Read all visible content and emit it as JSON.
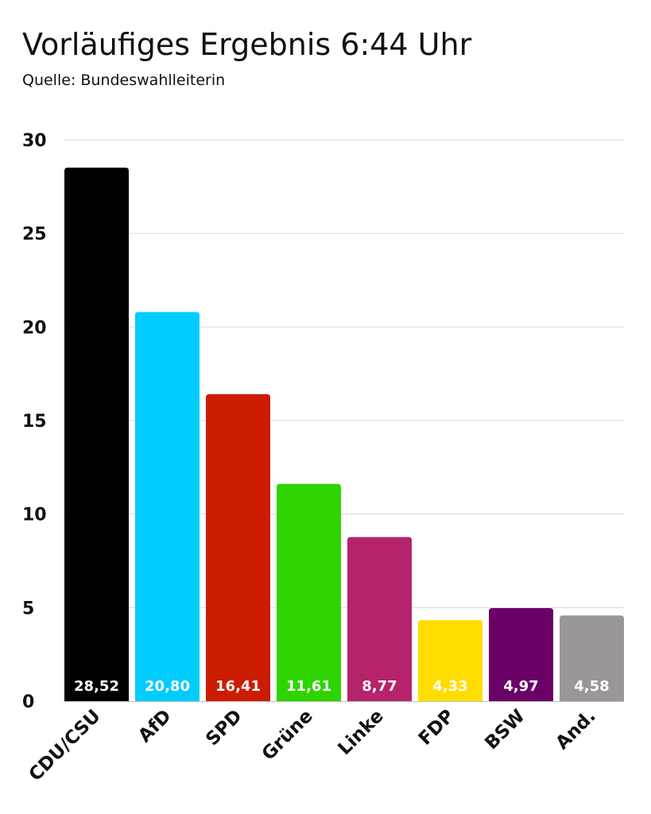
{
  "header": {
    "title": "Vorläufiges Ergebnis 6:44 Uhr",
    "subtitle": "Quelle: Bundeswahlleiterin"
  },
  "chart_data": {
    "type": "bar",
    "title": "Vorläufiges Ergebnis 6:44 Uhr",
    "subtitle": "Quelle: Bundeswahlleiterin",
    "categories": [
      "CDU/CSU",
      "AfD",
      "SPD",
      "Grüne",
      "Linke",
      "FDP",
      "BSW",
      "And."
    ],
    "values": [
      28.52,
      20.8,
      16.41,
      11.61,
      8.77,
      4.33,
      4.97,
      4.58
    ],
    "value_labels": [
      "28,52",
      "20,80",
      "16,41",
      "11,61",
      "8,77",
      "4,33",
      "4,97",
      "4,58"
    ],
    "colors": [
      "#000000",
      "#00CCFF",
      "#CC1C00",
      "#2ED400",
      "#B5236A",
      "#FFDD00",
      "#6B0066",
      "#9A9796"
    ],
    "xlabel": "",
    "ylabel": "",
    "ylim": [
      0,
      30
    ],
    "yticks": [
      0,
      5,
      10,
      15,
      20,
      25,
      30
    ],
    "grid": true,
    "legend": "none"
  }
}
